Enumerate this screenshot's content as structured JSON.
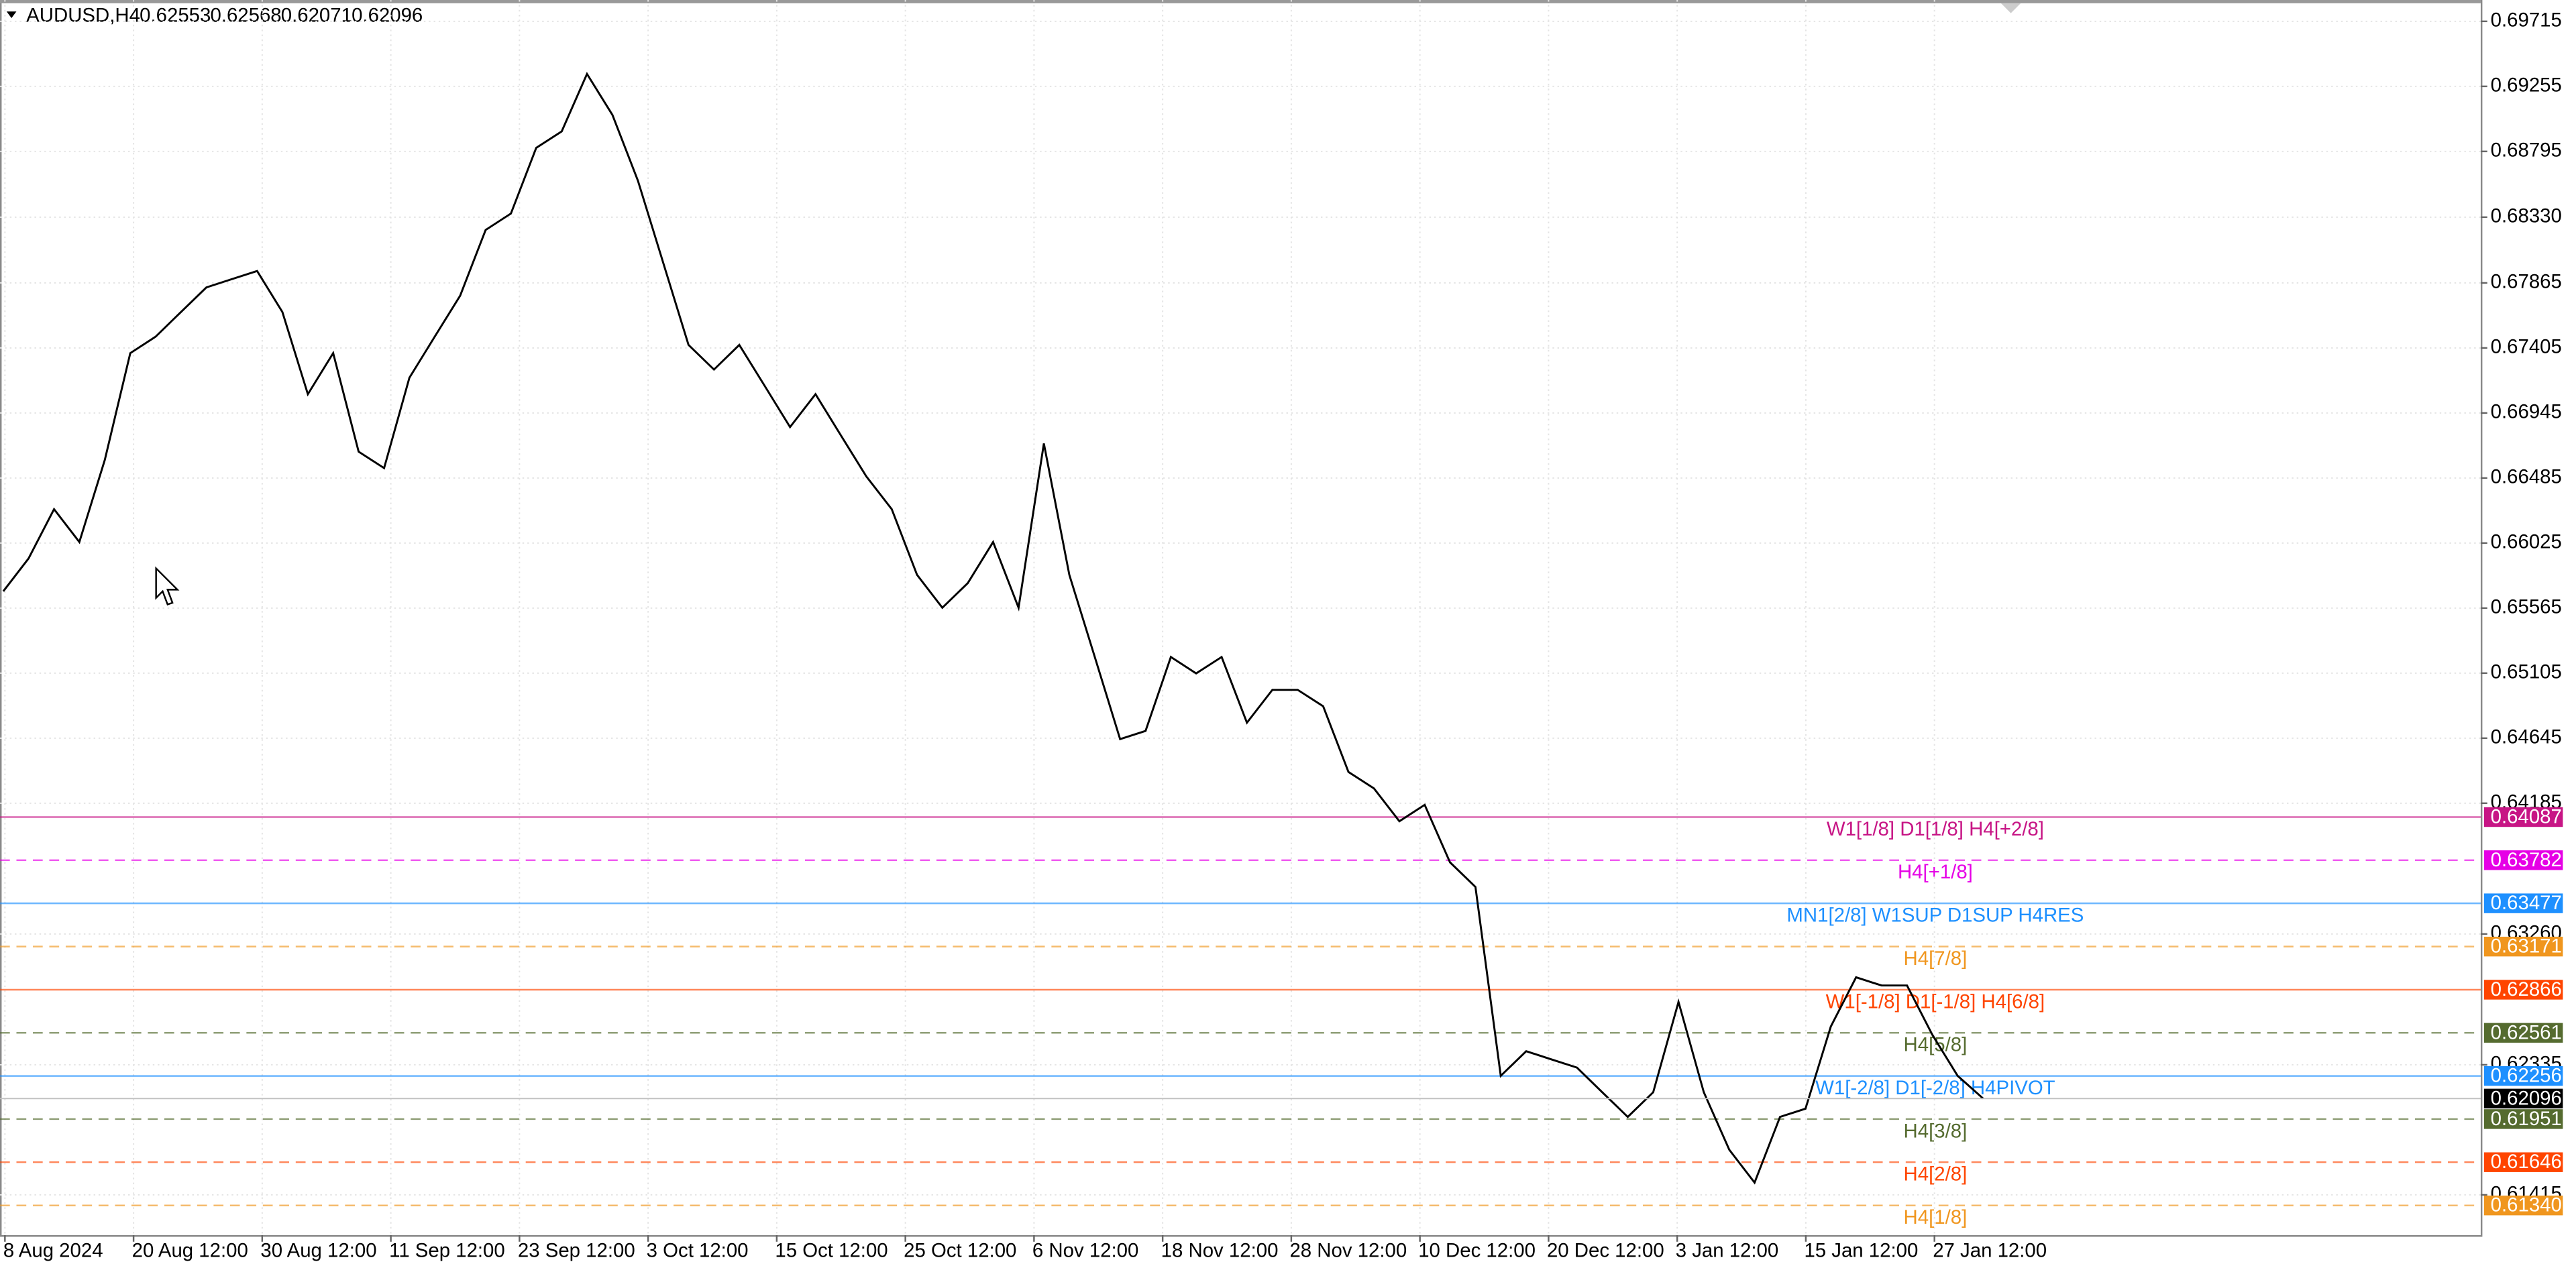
{
  "chart_data": {
    "type": "line",
    "symbol": "AUDUSD,H4",
    "ohlc": [
      0.62553,
      0.62568,
      0.62071,
      0.62096
    ],
    "current_price": 0.62096,
    "x_labels": [
      "8 Aug 2024",
      "20 Aug 12:00",
      "30 Aug 12:00",
      "11 Sep 12:00",
      "23 Sep 12:00",
      "3 Oct 12:00",
      "15 Oct 12:00",
      "25 Oct 12:00",
      "6 Nov 12:00",
      "18 Nov 12:00",
      "28 Nov 12:00",
      "10 Dec 12:00",
      "20 Dec 12:00",
      "3 Jan 12:00",
      "15 Jan 12:00",
      "27 Jan 12:00"
    ],
    "series": [
      {
        "name": "AUDUSD",
        "color": "#000000",
        "values": [
          0.65684,
          0.65916,
          0.66265,
          0.66032,
          0.66613,
          0.67368,
          0.67485,
          0.67659,
          0.67833,
          0.67891,
          0.67949,
          0.67659,
          0.67078,
          0.67368,
          0.66671,
          0.66555,
          0.67194,
          0.67485,
          0.67775,
          0.6824,
          0.68356,
          0.6882,
          0.68937,
          0.69343,
          0.69053,
          0.68588,
          0.68007,
          0.67426,
          0.67252,
          0.67426,
          0.67136,
          0.66846,
          0.67078,
          0.66787,
          0.66497,
          0.66265,
          0.658,
          0.65568,
          0.65742,
          0.66032,
          0.65568,
          0.66729,
          0.658,
          0.65219,
          0.64638,
          0.64696,
          0.65219,
          0.65103,
          0.65219,
          0.64754,
          0.64987,
          0.64987,
          0.64871,
          0.64406,
          0.6429,
          0.64057,
          0.64174,
          0.63767,
          0.63593,
          0.62257,
          0.62431,
          0.62373,
          0.62315,
          0.62141,
          0.61966,
          0.62141,
          0.6278,
          0.62141,
          0.61734,
          0.61502,
          0.61966,
          0.62025,
          0.62605,
          0.62954,
          0.62896,
          0.62896,
          0.62547,
          0.62257,
          0.62096
        ]
      }
    ],
    "ylim": [
      0.6113,
      0.69866
    ],
    "yticks": [
      0.69715,
      0.69255,
      0.68795,
      {
        "value": 0.6833,
        "label": "0.68330"
      },
      0.67865,
      0.67405,
      0.66945,
      0.66485,
      0.66025,
      0.65565,
      0.65105,
      0.64645,
      0.64185,
      {
        "value": 0.6326,
        "label": "0.63260"
      },
      0.62335,
      0.61415
    ],
    "grid": true,
    "levels": [
      {
        "name": "W1[1/8] D1[1/8] H4[+2/8]",
        "value": 0.64087,
        "price_label": "0.64087",
        "color": "#c71585",
        "dashed": false
      },
      {
        "name": "H4[+1/8]",
        "value": 0.63782,
        "price_label": "0.63782",
        "color": "#e600e6",
        "dashed": true
      },
      {
        "name": "MN1[2/8] W1SUP D1SUP H4RES",
        "value": 0.63477,
        "price_label": "0.63477",
        "color": "#1e90ff",
        "dashed": false
      },
      {
        "name": "H4[7/8]",
        "value": 0.63171,
        "price_label": "0.63171",
        "color": "#f0961e",
        "dashed": true
      },
      {
        "name": "W1[-1/8] D1[-1/8] H4[6/8]",
        "value": 0.62866,
        "price_label": "0.62866",
        "color": "#ff4500",
        "dashed": false
      },
      {
        "name": "H4[5/8]",
        "value": 0.62561,
        "price_label": "0.62561",
        "color": "#556b2f",
        "dashed": true
      },
      {
        "name": "W1[-2/8] D1[-2/8] H4PIVOT",
        "value": 0.62256,
        "price_label": "0.62256",
        "color": "#1e90ff",
        "dashed": false
      },
      {
        "name": "H4[3/8]",
        "value": 0.61951,
        "price_label": "0.61951",
        "color": "#556b2f",
        "dashed": true
      },
      {
        "name": "H4[2/8]",
        "value": 0.61646,
        "price_label": "0.61646",
        "color": "#ff4500",
        "dashed": true
      },
      {
        "name": "H4[1/8]",
        "value": 0.6134,
        "price_label": "0.61340",
        "color": "#f0961e",
        "dashed": true
      }
    ]
  }
}
